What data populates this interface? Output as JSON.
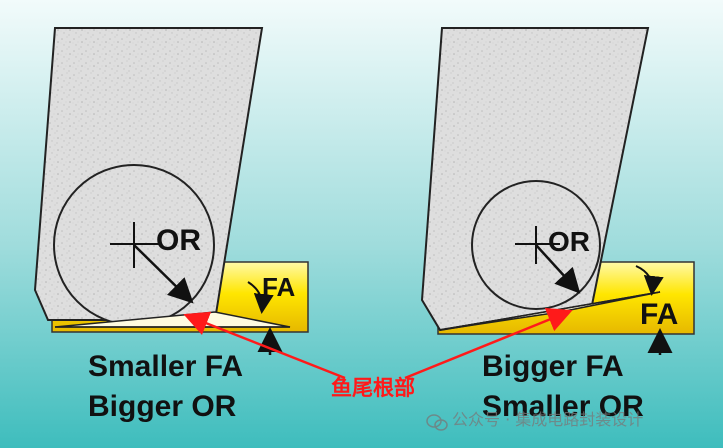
{
  "panels": [
    {
      "center_label": "OR",
      "angle_label": "FA",
      "caption_line1": "Smaller FA",
      "caption_line2": "Bigger OR"
    },
    {
      "center_label": "OR",
      "angle_label": "FA",
      "caption_line1": "Bigger FA",
      "caption_line2": "Smaller OR"
    }
  ],
  "callout": {
    "text": "鱼尾根部",
    "color": "#ff1a1a"
  },
  "watermark": {
    "text": "公众号 · 集成电路封装设计",
    "icon": "wechat-icon"
  },
  "colors": {
    "background_top": "#f0fafa",
    "background_bottom": "#3bbcbc",
    "pad": "#ffe600",
    "capillary": "#dcdcdc"
  }
}
